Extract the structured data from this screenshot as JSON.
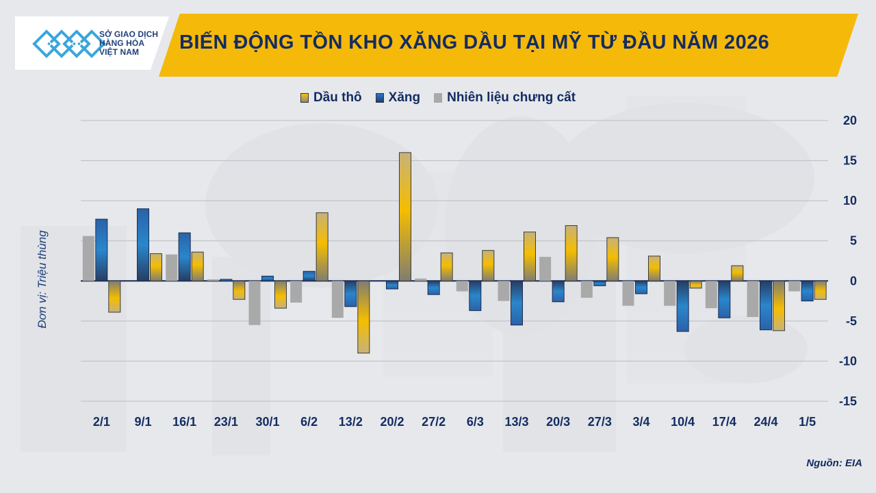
{
  "header": {
    "logo_lines": [
      "SỞ GIAO DỊCH",
      "HÀNG HÓA",
      "VIỆT NAM"
    ],
    "title": "BIẾN ĐỘNG TỒN KHO XĂNG DẦU TẠI MỸ TỪ ĐẦU NĂM 2026"
  },
  "footer": {
    "source": "Nguồn: EIA"
  },
  "colors": {
    "crude": "#f2b705",
    "gasoline": "#2366ad",
    "distillate": "#a9a9a9",
    "axis_text": "#142c62"
  },
  "chart_data": {
    "type": "bar",
    "title": "BIẾN ĐỘNG TỒN KHO XĂNG DẦU TẠI MỸ TỪ ĐẦU NĂM 2026",
    "ylabel": "Đơn vị: Triệu thùng",
    "xlabel": "",
    "ylim": [
      -15,
      20
    ],
    "yticks": [
      20,
      15,
      10,
      5,
      0,
      -5,
      -10,
      -15
    ],
    "y_axis_side": "right",
    "grid": true,
    "legend_position": "top-center",
    "categories": [
      "2/1",
      "9/1",
      "16/1",
      "23/1",
      "30/1",
      "6/2",
      "13/2",
      "20/2",
      "27/2",
      "6/3",
      "13/3",
      "20/3",
      "27/3",
      "3/4",
      "10/4",
      "17/4",
      "24/4",
      "1/5"
    ],
    "series": [
      {
        "name": "Nhiên liệu chưng cất",
        "values": [
          5.6,
          0,
          3.3,
          0.2,
          -5.5,
          -2.7,
          -4.6,
          0,
          0.3,
          -1.3,
          -2.5,
          3.0,
          -2.1,
          -3.1,
          -3.1,
          -3.4,
          -4.5,
          -1.3
        ]
      },
      {
        "name": "Xăng",
        "values": [
          7.7,
          9.0,
          6.0,
          0.2,
          0.6,
          1.2,
          -3.2,
          -1.0,
          -1.7,
          -3.7,
          -5.5,
          -2.6,
          -0.6,
          -1.6,
          -6.3,
          -4.6,
          -6.1,
          -2.5
        ]
      },
      {
        "name": "Dầu thô",
        "values": [
          -3.9,
          3.4,
          3.6,
          -2.3,
          -3.4,
          8.5,
          -9.0,
          16.0,
          3.5,
          3.8,
          6.1,
          6.9,
          5.4,
          3.1,
          -0.9,
          1.9,
          -6.2,
          -2.3
        ]
      }
    ]
  }
}
